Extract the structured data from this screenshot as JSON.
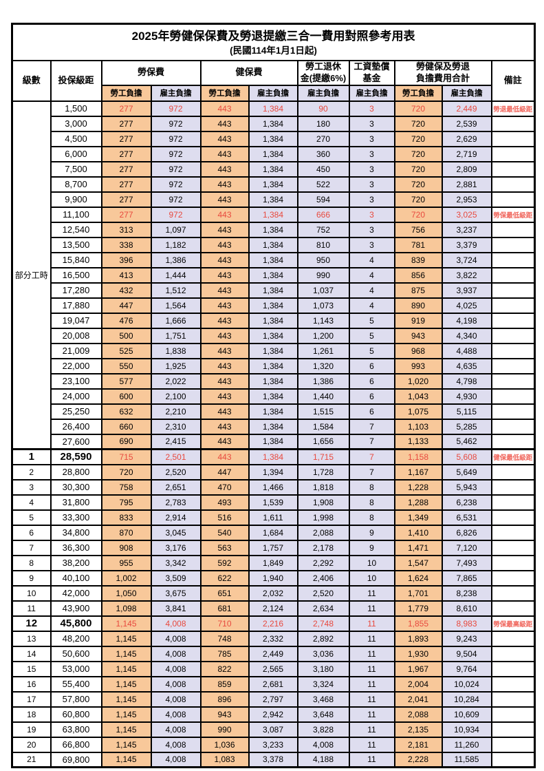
{
  "title": "2025年勞健保保費及勞退提繳三合一費用對照參考用表",
  "subtitle": "(民國114年1月1日起)",
  "header": {
    "level": "級數",
    "salary": "投保級距",
    "labor": "勞保費",
    "health": "健保費",
    "pension_line1": "勞工退休",
    "pension_line2": "金(提繳6%)",
    "wage_fund_line1": "工資墊償",
    "wage_fund_line2": "基金",
    "total_line1": "勞健保及勞退",
    "total_line2": "負擔費用合計",
    "remark": "備註",
    "employee": "勞工負擔",
    "employer": "雇主負擔"
  },
  "part_time_label": "部分工時",
  "part_time_rowspan": 23,
  "colors": {
    "employee_bg": "#F8C89A",
    "employer_bg": "#DEDDEF",
    "highlight_red": "#E8493E",
    "border": "#000000"
  },
  "rows": [
    {
      "level": "",
      "salary": "1,500",
      "values": [
        "277",
        "972",
        "443",
        "1,384",
        "90",
        "3",
        "720",
        "2,449"
      ],
      "remark": "勞退最低級距",
      "red": true
    },
    {
      "level": "",
      "salary": "3,000",
      "values": [
        "277",
        "972",
        "443",
        "1,384",
        "180",
        "3",
        "720",
        "2,539"
      ],
      "remark": ""
    },
    {
      "level": "",
      "salary": "4,500",
      "values": [
        "277",
        "972",
        "443",
        "1,384",
        "270",
        "3",
        "720",
        "2,629"
      ],
      "remark": ""
    },
    {
      "level": "",
      "salary": "6,000",
      "values": [
        "277",
        "972",
        "443",
        "1,384",
        "360",
        "3",
        "720",
        "2,719"
      ],
      "remark": ""
    },
    {
      "level": "",
      "salary": "7,500",
      "values": [
        "277",
        "972",
        "443",
        "1,384",
        "450",
        "3",
        "720",
        "2,809"
      ],
      "remark": ""
    },
    {
      "level": "",
      "salary": "8,700",
      "values": [
        "277",
        "972",
        "443",
        "1,384",
        "522",
        "3",
        "720",
        "2,881"
      ],
      "remark": ""
    },
    {
      "level": "",
      "salary": "9,900",
      "values": [
        "277",
        "972",
        "443",
        "1,384",
        "594",
        "3",
        "720",
        "2,953"
      ],
      "remark": ""
    },
    {
      "level": "",
      "salary": "11,100",
      "values": [
        "277",
        "972",
        "443",
        "1,384",
        "666",
        "3",
        "720",
        "3,025"
      ],
      "remark": "勞保最低級距",
      "red": true
    },
    {
      "level": "",
      "salary": "12,540",
      "values": [
        "313",
        "1,097",
        "443",
        "1,384",
        "752",
        "3",
        "756",
        "3,237"
      ],
      "remark": ""
    },
    {
      "level": "",
      "salary": "13,500",
      "values": [
        "338",
        "1,182",
        "443",
        "1,384",
        "810",
        "3",
        "781",
        "3,379"
      ],
      "remark": ""
    },
    {
      "level": "",
      "salary": "15,840",
      "values": [
        "396",
        "1,386",
        "443",
        "1,384",
        "950",
        "4",
        "839",
        "3,724"
      ],
      "remark": ""
    },
    {
      "level": "",
      "salary": "16,500",
      "values": [
        "413",
        "1,444",
        "443",
        "1,384",
        "990",
        "4",
        "856",
        "3,822"
      ],
      "remark": ""
    },
    {
      "level": "",
      "salary": "17,280",
      "values": [
        "432",
        "1,512",
        "443",
        "1,384",
        "1,037",
        "4",
        "875",
        "3,937"
      ],
      "remark": ""
    },
    {
      "level": "",
      "salary": "17,880",
      "values": [
        "447",
        "1,564",
        "443",
        "1,384",
        "1,073",
        "4",
        "890",
        "4,025"
      ],
      "remark": ""
    },
    {
      "level": "",
      "salary": "19,047",
      "values": [
        "476",
        "1,666",
        "443",
        "1,384",
        "1,143",
        "5",
        "919",
        "4,198"
      ],
      "remark": ""
    },
    {
      "level": "",
      "salary": "20,008",
      "values": [
        "500",
        "1,751",
        "443",
        "1,384",
        "1,200",
        "5",
        "943",
        "4,340"
      ],
      "remark": ""
    },
    {
      "level": "",
      "salary": "21,009",
      "values": [
        "525",
        "1,838",
        "443",
        "1,384",
        "1,261",
        "5",
        "968",
        "4,488"
      ],
      "remark": ""
    },
    {
      "level": "",
      "salary": "22,000",
      "values": [
        "550",
        "1,925",
        "443",
        "1,384",
        "1,320",
        "6",
        "993",
        "4,635"
      ],
      "remark": ""
    },
    {
      "level": "",
      "salary": "23,100",
      "values": [
        "577",
        "2,022",
        "443",
        "1,384",
        "1,386",
        "6",
        "1,020",
        "4,798"
      ],
      "remark": ""
    },
    {
      "level": "",
      "salary": "24,000",
      "values": [
        "600",
        "2,100",
        "443",
        "1,384",
        "1,440",
        "6",
        "1,043",
        "4,930"
      ],
      "remark": ""
    },
    {
      "level": "",
      "salary": "25,250",
      "values": [
        "632",
        "2,210",
        "443",
        "1,384",
        "1,515",
        "6",
        "1,075",
        "5,115"
      ],
      "remark": ""
    },
    {
      "level": "",
      "salary": "26,400",
      "values": [
        "660",
        "2,310",
        "443",
        "1,384",
        "1,584",
        "7",
        "1,103",
        "5,285"
      ],
      "remark": ""
    },
    {
      "level": "",
      "salary": "27,600",
      "values": [
        "690",
        "2,415",
        "443",
        "1,384",
        "1,656",
        "7",
        "1,133",
        "5,462"
      ],
      "remark": ""
    },
    {
      "level": "1",
      "salary": "28,590",
      "values": [
        "715",
        "2,501",
        "443",
        "1,384",
        "1,715",
        "7",
        "1,158",
        "5,608"
      ],
      "remark": "健保最低級距",
      "red": true,
      "big": true,
      "sep": true
    },
    {
      "level": "2",
      "salary": "28,800",
      "values": [
        "720",
        "2,520",
        "447",
        "1,394",
        "1,728",
        "7",
        "1,167",
        "5,649"
      ],
      "remark": ""
    },
    {
      "level": "3",
      "salary": "30,300",
      "values": [
        "758",
        "2,651",
        "470",
        "1,466",
        "1,818",
        "8",
        "1,228",
        "5,943"
      ],
      "remark": ""
    },
    {
      "level": "4",
      "salary": "31,800",
      "values": [
        "795",
        "2,783",
        "493",
        "1,539",
        "1,908",
        "8",
        "1,288",
        "6,238"
      ],
      "remark": ""
    },
    {
      "level": "5",
      "salary": "33,300",
      "values": [
        "833",
        "2,914",
        "516",
        "1,611",
        "1,998",
        "8",
        "1,349",
        "6,531"
      ],
      "remark": ""
    },
    {
      "level": "6",
      "salary": "34,800",
      "values": [
        "870",
        "3,045",
        "540",
        "1,684",
        "2,088",
        "9",
        "1,410",
        "6,826"
      ],
      "remark": ""
    },
    {
      "level": "7",
      "salary": "36,300",
      "values": [
        "908",
        "3,176",
        "563",
        "1,757",
        "2,178",
        "9",
        "1,471",
        "7,120"
      ],
      "remark": ""
    },
    {
      "level": "8",
      "salary": "38,200",
      "values": [
        "955",
        "3,342",
        "592",
        "1,849",
        "2,292",
        "10",
        "1,547",
        "7,493"
      ],
      "remark": ""
    },
    {
      "level": "9",
      "salary": "40,100",
      "values": [
        "1,002",
        "3,509",
        "622",
        "1,940",
        "2,406",
        "10",
        "1,624",
        "7,865"
      ],
      "remark": ""
    },
    {
      "level": "10",
      "salary": "42,000",
      "values": [
        "1,050",
        "3,675",
        "651",
        "2,032",
        "2,520",
        "11",
        "1,701",
        "8,238"
      ],
      "remark": ""
    },
    {
      "level": "11",
      "salary": "43,900",
      "values": [
        "1,098",
        "3,841",
        "681",
        "2,124",
        "2,634",
        "11",
        "1,779",
        "8,610"
      ],
      "remark": ""
    },
    {
      "level": "12",
      "salary": "45,800",
      "values": [
        "1,145",
        "4,008",
        "710",
        "2,216",
        "2,748",
        "11",
        "1,855",
        "8,983"
      ],
      "remark": "勞保最高級距",
      "red": true,
      "big": true
    },
    {
      "level": "13",
      "salary": "48,200",
      "values": [
        "1,145",
        "4,008",
        "748",
        "2,332",
        "2,892",
        "11",
        "1,893",
        "9,243"
      ],
      "remark": ""
    },
    {
      "level": "14",
      "salary": "50,600",
      "values": [
        "1,145",
        "4,008",
        "785",
        "2,449",
        "3,036",
        "11",
        "1,930",
        "9,504"
      ],
      "remark": ""
    },
    {
      "level": "15",
      "salary": "53,000",
      "values": [
        "1,145",
        "4,008",
        "822",
        "2,565",
        "3,180",
        "11",
        "1,967",
        "9,764"
      ],
      "remark": ""
    },
    {
      "level": "16",
      "salary": "55,400",
      "values": [
        "1,145",
        "4,008",
        "859",
        "2,681",
        "3,324",
        "11",
        "2,004",
        "10,024"
      ],
      "remark": ""
    },
    {
      "level": "17",
      "salary": "57,800",
      "values": [
        "1,145",
        "4,008",
        "896",
        "2,797",
        "3,468",
        "11",
        "2,041",
        "10,284"
      ],
      "remark": ""
    },
    {
      "level": "18",
      "salary": "60,800",
      "values": [
        "1,145",
        "4,008",
        "943",
        "2,942",
        "3,648",
        "11",
        "2,088",
        "10,609"
      ],
      "remark": ""
    },
    {
      "level": "19",
      "salary": "63,800",
      "values": [
        "1,145",
        "4,008",
        "990",
        "3,087",
        "3,828",
        "11",
        "2,135",
        "10,934"
      ],
      "remark": ""
    },
    {
      "level": "20",
      "salary": "66,800",
      "values": [
        "1,145",
        "4,008",
        "1,036",
        "3,233",
        "4,008",
        "11",
        "2,181",
        "11,260"
      ],
      "remark": ""
    },
    {
      "level": "21",
      "salary": "69,800",
      "values": [
        "1,145",
        "4,008",
        "1,083",
        "3,378",
        "4,188",
        "11",
        "2,228",
        "11,585"
      ],
      "remark": ""
    }
  ]
}
